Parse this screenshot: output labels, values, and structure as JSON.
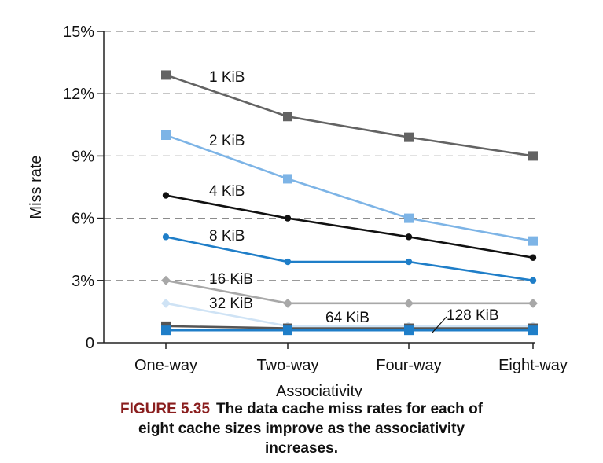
{
  "chart_data": {
    "type": "line",
    "xlabel": "Associativity",
    "ylabel": "Miss rate",
    "categories": [
      "One-way",
      "Two-way",
      "Four-way",
      "Eight-way"
    ],
    "ylim": [
      0,
      15
    ],
    "yticks": [
      0,
      3,
      6,
      9,
      12,
      15
    ],
    "ytick_labels": [
      "0",
      "3%",
      "6%",
      "9%",
      "12%",
      "15%"
    ],
    "grid": "horizontal dashed",
    "legend": "inline labels",
    "series": [
      {
        "name": "1 KiB",
        "values": [
          12.9,
          10.9,
          9.9,
          9.0
        ],
        "color": "#636363",
        "marker": "square"
      },
      {
        "name": "2 KiB",
        "values": [
          10.0,
          7.9,
          6.0,
          4.9
        ],
        "color": "#7db4e6",
        "marker": "square"
      },
      {
        "name": "4 KiB",
        "values": [
          7.1,
          6.0,
          5.1,
          4.1
        ],
        "color": "#111111",
        "marker": "circle"
      },
      {
        "name": "8 KiB",
        "values": [
          5.1,
          3.9,
          3.9,
          3.0
        ],
        "color": "#1f7ec8",
        "marker": "circle"
      },
      {
        "name": "16 KiB",
        "values": [
          3.0,
          1.9,
          1.9,
          1.9
        ],
        "color": "#a8a8a8",
        "marker": "diamond"
      },
      {
        "name": "32 KiB",
        "values": [
          1.9,
          0.8,
          0.8,
          0.8
        ],
        "color": "#cfe3f5",
        "marker": "diamond"
      },
      {
        "name": "64 KiB",
        "values": [
          0.8,
          0.7,
          0.7,
          0.7
        ],
        "color": "#555555",
        "marker": "square"
      },
      {
        "name": "128 KiB",
        "values": [
          0.6,
          0.6,
          0.6,
          0.6
        ],
        "color": "#1f7ec8",
        "marker": "square"
      }
    ]
  },
  "caption": {
    "figure_number": "FIGURE 5.35",
    "line1": "The data cache miss rates for each of",
    "line2": "eight cache sizes improve as the associativity",
    "line3": "increases."
  }
}
